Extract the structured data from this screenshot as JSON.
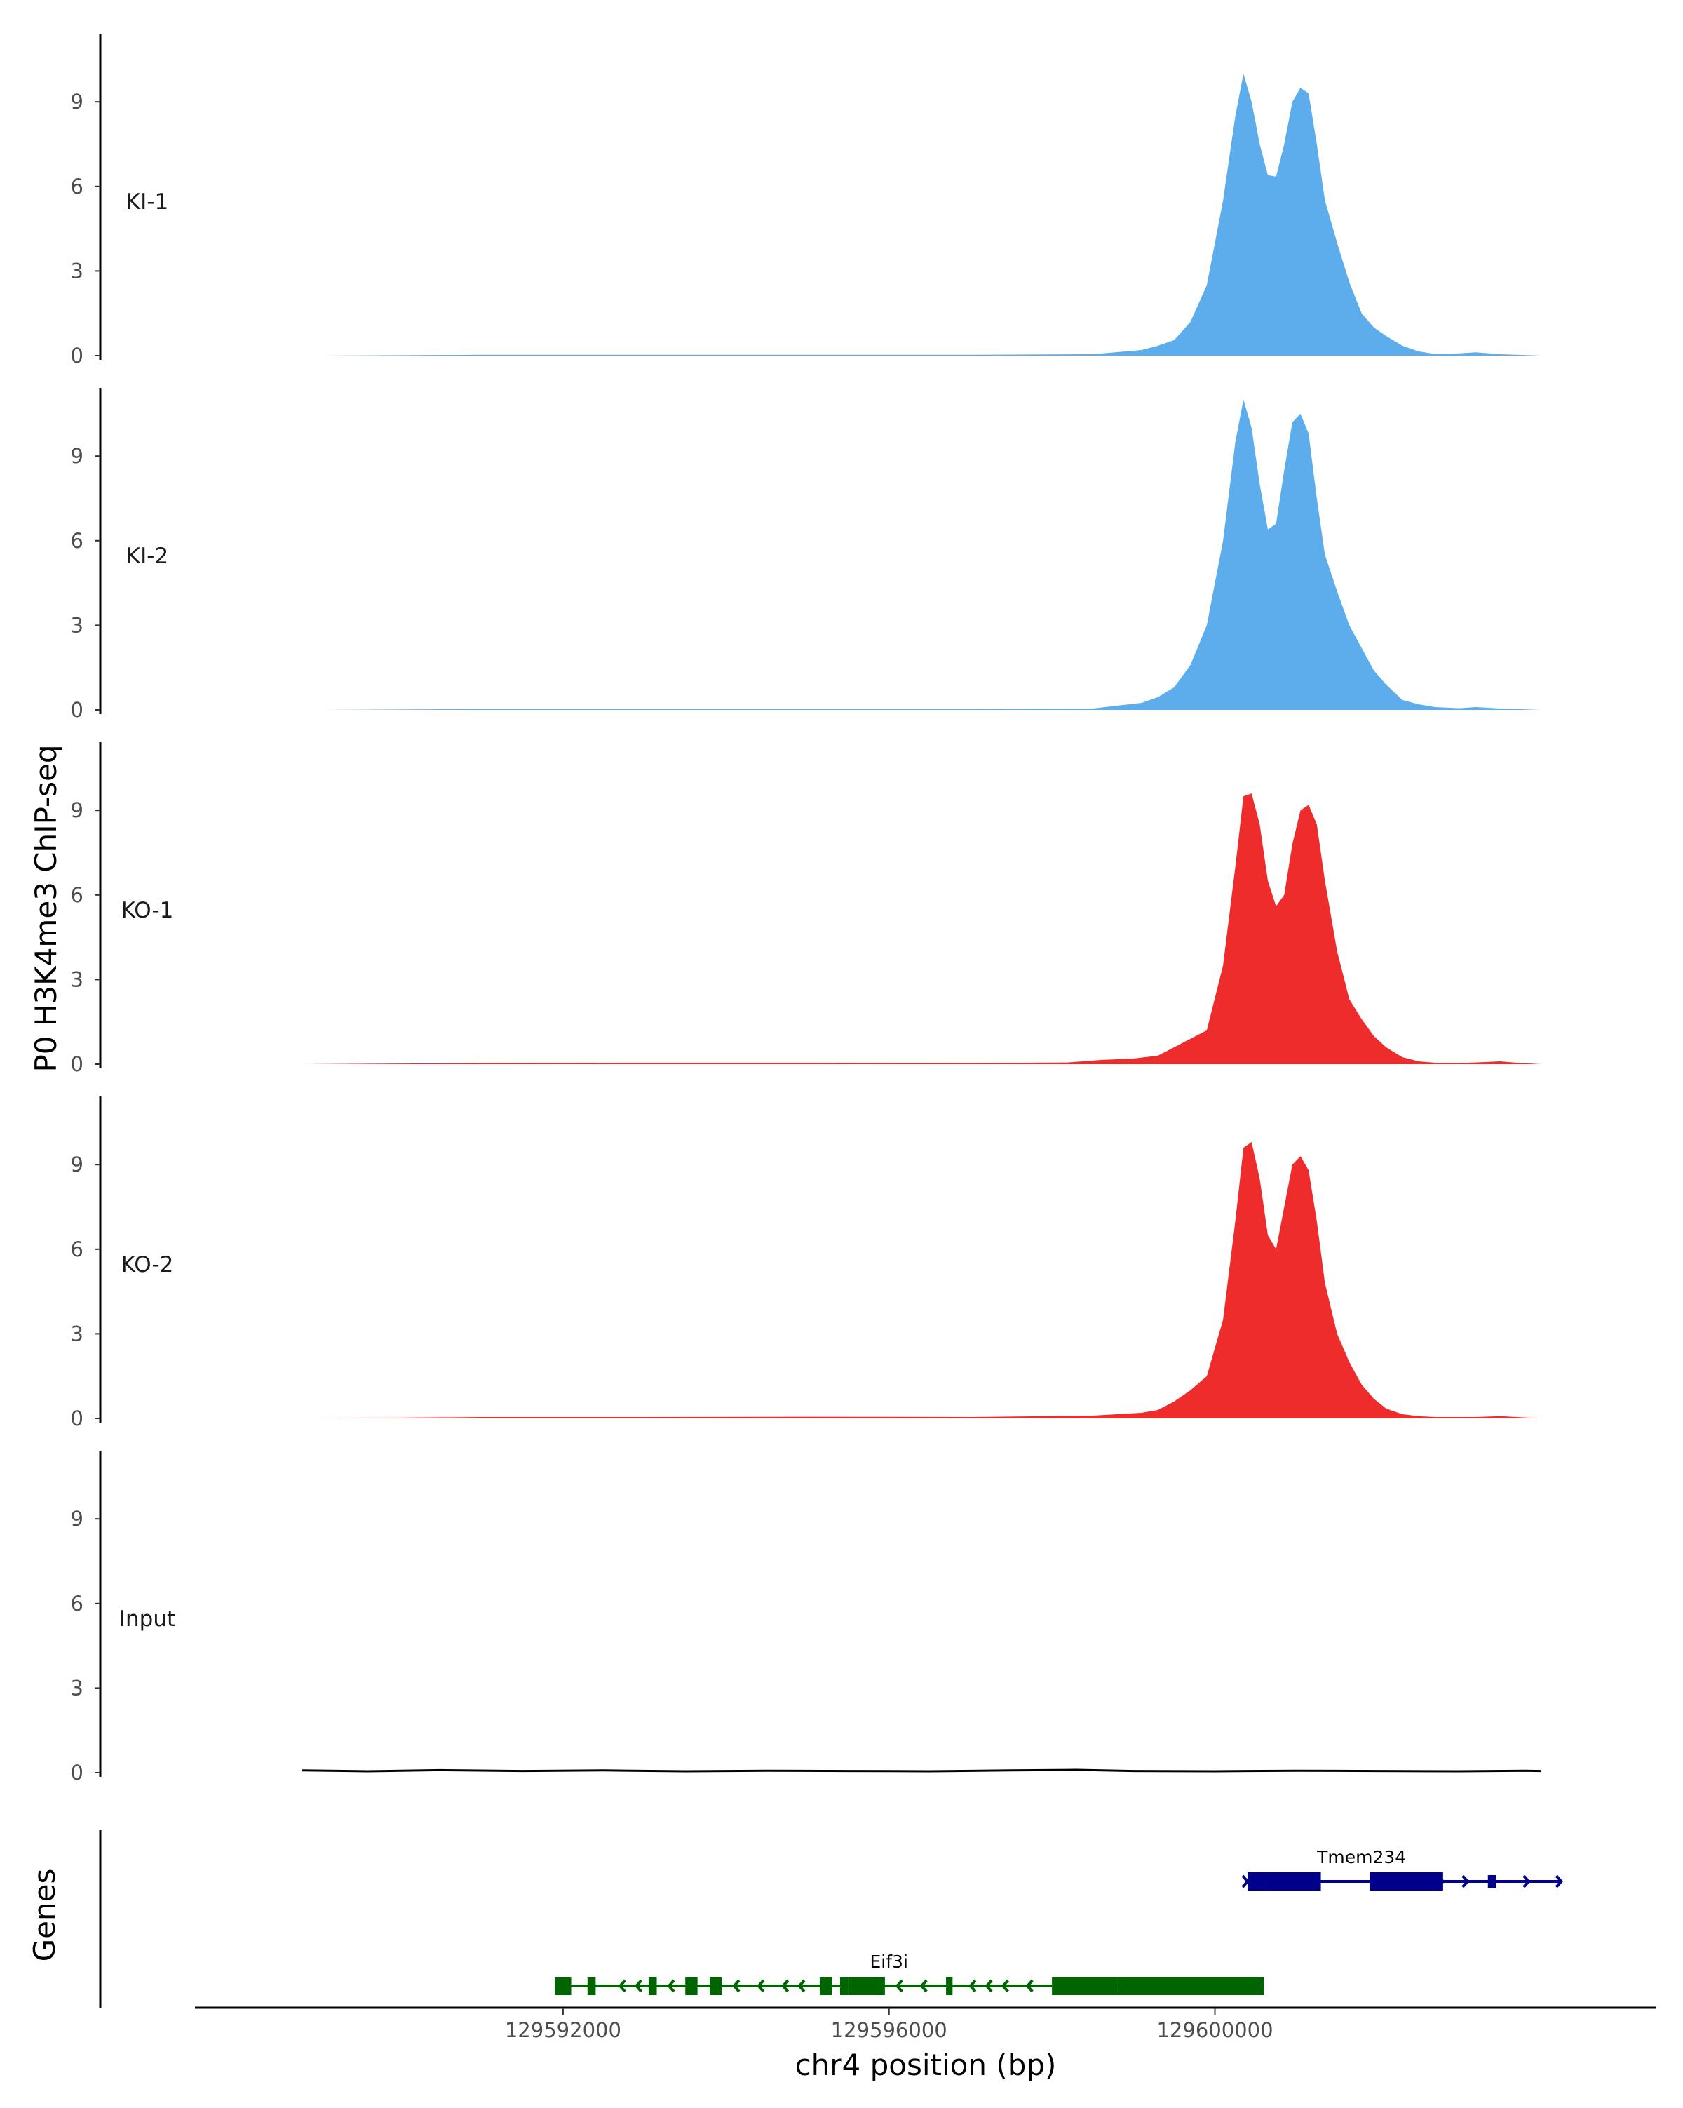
{
  "chart_data": {
    "type": "area",
    "title": "",
    "ylabel": "P0 H3K4me3 ChIP-seq",
    "genes_label": "Genes",
    "xlabel": "chr4 position (bp)",
    "xlim": [
      129587500,
      129605400
    ],
    "ylim": [
      0,
      11.5
    ],
    "yticks": [
      0,
      3,
      6,
      9
    ],
    "xticks": [
      129592000,
      129596000,
      129600000
    ],
    "xtick_labels": [
      "129592000",
      "129596000",
      "129600000"
    ],
    "colors": {
      "KI": "#5DADEC",
      "KO": "#EE2C2C",
      "Input": "#000000",
      "gene_minus": "#006400",
      "gene_plus": "#00008B"
    },
    "tracks": [
      {
        "name": "KI-1",
        "color": "#5DADEC",
        "x": [
          129589000,
          129591000,
          129593000,
          129595000,
          129597000,
          129598500,
          129599100,
          129599300,
          129599500,
          129599700,
          129599900,
          129600100,
          129600250,
          129600350,
          129600450,
          129600550,
          129600650,
          129600750,
          129600850,
          129600950,
          129601050,
          129601150,
          129601250,
          129601350,
          129601500,
          129601650,
          129601800,
          129601950,
          129602100,
          129602300,
          129602500,
          129602700,
          129603000,
          129603200,
          129603500,
          129603700,
          129604000
        ],
        "y": [
          0,
          0.03,
          0.03,
          0.03,
          0.03,
          0.05,
          0.2,
          0.35,
          0.55,
          1.2,
          2.5,
          5.5,
          8.5,
          10.0,
          9.0,
          7.5,
          6.4,
          6.35,
          7.5,
          9.0,
          9.5,
          9.3,
          7.5,
          5.5,
          4.0,
          2.6,
          1.5,
          1.0,
          0.7,
          0.35,
          0.15,
          0.06,
          0.08,
          0.12,
          0.05,
          0.03,
          0
        ]
      },
      {
        "name": "KI-2",
        "color": "#5DADEC",
        "x": [
          129589000,
          129591000,
          129593000,
          129595000,
          129597000,
          129598500,
          129599100,
          129599300,
          129599500,
          129599700,
          129599900,
          129600100,
          129600250,
          129600350,
          129600450,
          129600550,
          129600650,
          129600750,
          129600850,
          129600950,
          129601050,
          129601150,
          129601250,
          129601350,
          129601500,
          129601650,
          129601800,
          129601950,
          129602100,
          129602300,
          129602500,
          129602700,
          129603000,
          129603200,
          129603500,
          129603700,
          129604000
        ],
        "y": [
          0,
          0.03,
          0.03,
          0.03,
          0.03,
          0.05,
          0.25,
          0.45,
          0.8,
          1.6,
          3.0,
          6.0,
          9.5,
          11.0,
          10.0,
          8.0,
          6.4,
          6.6,
          8.5,
          10.2,
          10.5,
          9.8,
          7.5,
          5.5,
          4.2,
          3.0,
          2.2,
          1.4,
          0.9,
          0.35,
          0.2,
          0.1,
          0.06,
          0.1,
          0.05,
          0.03,
          0
        ]
      },
      {
        "name": "KO-1",
        "color": "#EE2C2C",
        "x": [
          129588800,
          129591000,
          129593000,
          129595000,
          129597000,
          129598200,
          129598600,
          129599000,
          129599300,
          129599500,
          129599700,
          129599900,
          129600100,
          129600250,
          129600350,
          129600450,
          129600550,
          129600650,
          129600750,
          129600850,
          129600950,
          129601050,
          129601150,
          129601250,
          129601350,
          129601500,
          129601650,
          129601800,
          129601950,
          129602100,
          129602300,
          129602500,
          129602700,
          129603000,
          129603200,
          129603500,
          129603700,
          129604000
        ],
        "y": [
          0,
          0.04,
          0.05,
          0.05,
          0.04,
          0.06,
          0.15,
          0.2,
          0.3,
          0.6,
          0.9,
          1.2,
          3.5,
          7.0,
          9.5,
          9.6,
          8.5,
          6.5,
          5.6,
          6.0,
          7.8,
          9.0,
          9.2,
          8.5,
          6.5,
          4.0,
          2.3,
          1.6,
          1.0,
          0.6,
          0.25,
          0.1,
          0.05,
          0.04,
          0.06,
          0.1,
          0.05,
          0
        ]
      },
      {
        "name": "KO-2",
        "color": "#EE2C2C",
        "x": [
          129589000,
          129591000,
          129593000,
          129595000,
          129597000,
          129598500,
          129599100,
          129599300,
          129599500,
          129599700,
          129599900,
          129600100,
          129600250,
          129600350,
          129600450,
          129600550,
          129600650,
          129600750,
          129600850,
          129600950,
          129601050,
          129601150,
          129601250,
          129601350,
          129601500,
          129601650,
          129601800,
          129601950,
          129602100,
          129602300,
          129602500,
          129602700,
          129603000,
          129603200,
          129603500,
          129603700,
          129604000
        ],
        "y": [
          0,
          0.05,
          0.05,
          0.06,
          0.05,
          0.1,
          0.2,
          0.3,
          0.6,
          1.0,
          1.5,
          3.5,
          7.0,
          9.6,
          9.8,
          8.5,
          6.5,
          6.0,
          7.5,
          9.0,
          9.3,
          8.8,
          7.0,
          4.8,
          3.0,
          2.0,
          1.2,
          0.7,
          0.35,
          0.15,
          0.08,
          0.05,
          0.05,
          0.05,
          0.08,
          0.05,
          0
        ]
      },
      {
        "name": "Input",
        "color": "#000000",
        "x": [
          129588800,
          129589600,
          129590500,
          129591500,
          129592500,
          129593500,
          129594500,
          129595500,
          129596500,
          129597500,
          129598300,
          129599000,
          129600000,
          129601000,
          129602000,
          129603000,
          129603800,
          129604000
        ],
        "y": [
          0.08,
          0.05,
          0.09,
          0.06,
          0.08,
          0.05,
          0.07,
          0.06,
          0.05,
          0.08,
          0.1,
          0.06,
          0.05,
          0.07,
          0.06,
          0.05,
          0.07,
          0.06
        ]
      }
    ],
    "genes": [
      {
        "name": "Tmem234",
        "strand": "+",
        "color": "#00008B",
        "row": 1,
        "label_pos": 129601800,
        "span": [
          129600400,
          129604250
        ],
        "exons": [
          [
            129600400,
            129600600,
            "thick"
          ],
          [
            129600600,
            129601300,
            "thick"
          ],
          [
            129601900,
            129602800,
            "thick"
          ],
          [
            129603350,
            129603450,
            "thin"
          ]
        ],
        "arrows": [
          129600400,
          129602300,
          129602800,
          129603100,
          129603850,
          129604250
        ]
      },
      {
        "name": "Eif3i",
        "strand": "-",
        "color": "#006400",
        "row": 2,
        "label_pos": 129596000,
        "span": [
          129591900,
          129600600
        ],
        "exons": [
          [
            129591900,
            129592100,
            "thick"
          ],
          [
            129592300,
            129592400,
            "thick"
          ],
          [
            129593050,
            129593150,
            "thick"
          ],
          [
            129593500,
            129593650,
            "thick"
          ],
          [
            129593800,
            129593950,
            "thick"
          ],
          [
            129595150,
            129595300,
            "thick"
          ],
          [
            129595400,
            129595500,
            "thick"
          ],
          [
            129595500,
            129595950,
            "thick"
          ],
          [
            129596700,
            129596780,
            "thick"
          ],
          [
            129598000,
            129598800,
            "thick"
          ],
          [
            129598800,
            129600600,
            "thick"
          ]
        ],
        "arrows": [
          129592700,
          129592900,
          129593300,
          129594100,
          129594400,
          129594700,
          129594900,
          129595200,
          129596100,
          129596400,
          129597000,
          129597200,
          129597400,
          129597700
        ]
      }
    ]
  }
}
